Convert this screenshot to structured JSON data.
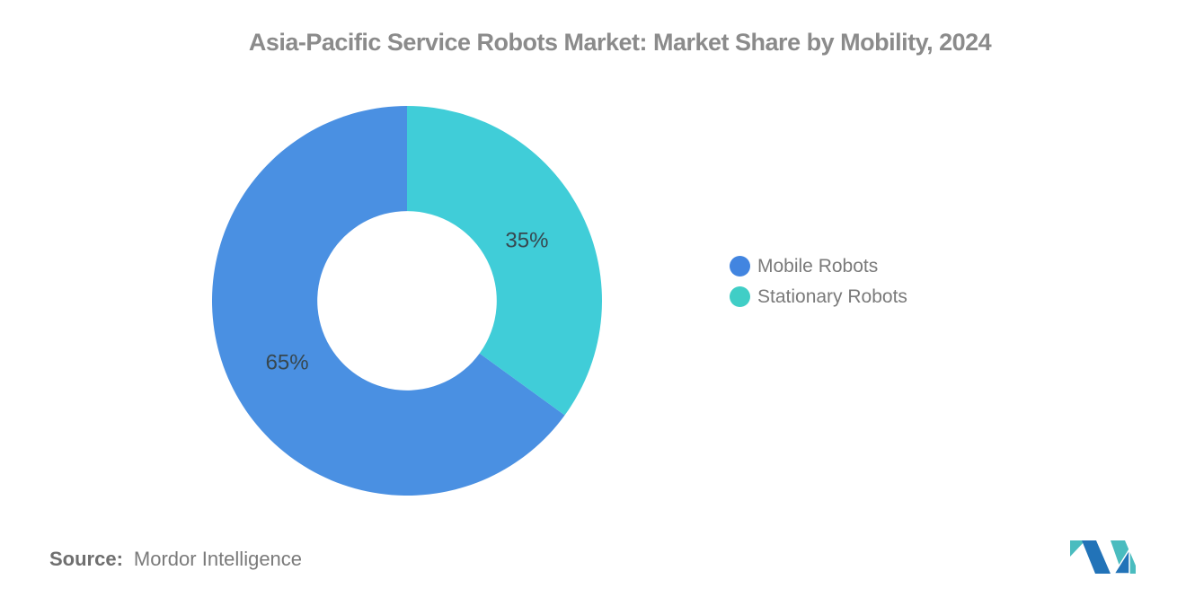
{
  "title": "Asia-Pacific Service Robots Market: Market Share by Mobility, 2024",
  "chart_data": {
    "type": "pie",
    "subtype": "donut",
    "title": "Asia-Pacific Service Robots Market: Market Share by Mobility, 2024",
    "slices": [
      {
        "label": "Mobile Robots",
        "value": 65,
        "color": "#4A90E2"
      },
      {
        "label": "Stationary Robots",
        "value": 35,
        "color": "#40CDD8"
      }
    ],
    "data_labels": [
      "65%",
      "35%"
    ],
    "data_label_color": "#37474F",
    "start_angle_deg": 0,
    "direction": "counterclockwise",
    "inner_radius_ratio": 0.46,
    "label_radius_ratio": 0.69,
    "legend_position": "right",
    "grid": false
  },
  "legend": {
    "items": [
      {
        "label": "Mobile Robots",
        "color": "#4285E0"
      },
      {
        "label": "Stationary Robots",
        "color": "#40CEC6"
      }
    ]
  },
  "source": {
    "label": "Source:",
    "text": "Mordor Intelligence"
  },
  "logo": {
    "name": "Mordor Intelligence logo",
    "blue": "#2273B8",
    "teal": "#4ABCBF"
  }
}
